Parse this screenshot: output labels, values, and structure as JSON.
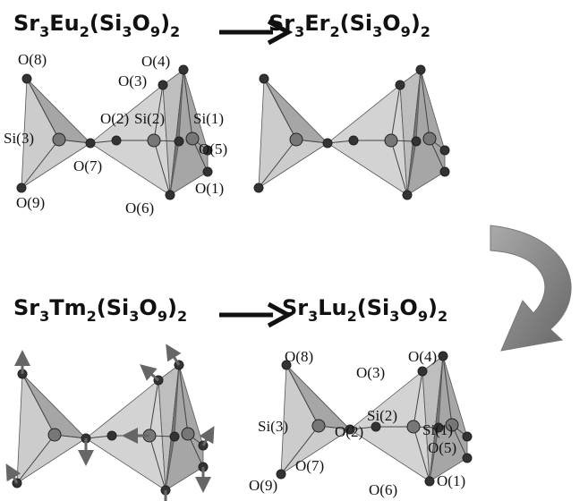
{
  "panels": [
    {
      "formula": [
        "Sr",
        "3",
        "Eu",
        "2",
        "(Si",
        "3",
        "O",
        "9",
        ")",
        "2"
      ],
      "labels": [
        "O(8)",
        "O(4)",
        "O(3)",
        "Si(3)",
        "O(2)",
        "Si(2)",
        "Si(1)",
        "O(5)",
        "O(7)",
        "O(9)",
        "O(6)",
        "O(1)"
      ]
    },
    {
      "formula": [
        "Sr",
        "3",
        "Er",
        "2",
        "(Si",
        "3",
        "O",
        "9",
        ")",
        "2"
      ]
    },
    {
      "formula": [
        "Sr",
        "3",
        "Tm",
        "2",
        "(Si",
        "3",
        "O",
        "9",
        ")",
        "2"
      ]
    },
    {
      "formula": [
        "Sr",
        "3",
        "Lu",
        "2",
        "(Si",
        "3",
        "O",
        "9",
        ")",
        "2"
      ],
      "labels": [
        "O(8)",
        "O(3)",
        "O(4)",
        "Si(3)",
        "O(2)",
        "Si(2)",
        "Si(1)",
        "O(5)",
        "O(7)",
        "O(9)",
        "O(6)",
        "O(1)"
      ]
    }
  ]
}
